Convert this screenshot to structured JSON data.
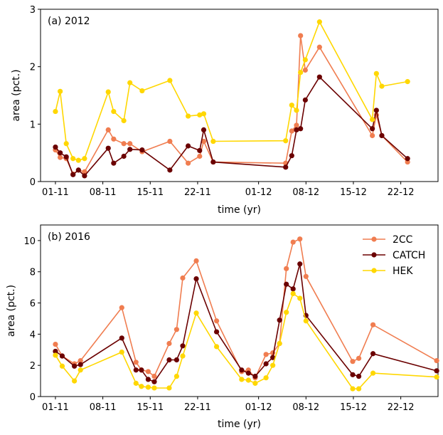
{
  "colors": {
    "2CC": "#f07d50",
    "CATCH": "#6b0000",
    "HEK": "#ffd700"
  },
  "chart_data": [
    {
      "type": "line",
      "title": "(a) 2012",
      "xlabel": "time (yr)",
      "ylabel": "area (pct.)",
      "ylim": [
        0,
        3
      ],
      "yticks": [
        0,
        1,
        2,
        3
      ],
      "xlim": [
        -2.2,
        56.5
      ],
      "xtick_pos": [
        0,
        7,
        14,
        21,
        30,
        37,
        44,
        51
      ],
      "xtick_labels": [
        "01-11",
        "08-11",
        "15-11",
        "22-11",
        "01-12",
        "08-12",
        "15-12",
        "22-12"
      ],
      "legend": false,
      "series": [
        {
          "name": "2CC",
          "points": [
            [
              0,
              0.55
            ],
            [
              0.7,
              0.42
            ],
            [
              1.6,
              0.4
            ],
            [
              2.6,
              0.13
            ],
            [
              3.4,
              0.2
            ],
            [
              4.3,
              0.17
            ],
            [
              7.8,
              0.9
            ],
            [
              8.6,
              0.74
            ],
            [
              10.1,
              0.66
            ],
            [
              11.0,
              0.66
            ],
            [
              12.8,
              0.52
            ],
            [
              16.9,
              0.7
            ],
            [
              19.6,
              0.32
            ],
            [
              21.3,
              0.44
            ],
            [
              21.9,
              0.7
            ],
            [
              23.3,
              0.34
            ],
            [
              34.0,
              0.32
            ],
            [
              34.9,
              0.88
            ],
            [
              35.6,
              0.98
            ],
            [
              36.2,
              2.54
            ],
            [
              36.9,
              1.94
            ],
            [
              39.0,
              2.34
            ],
            [
              46.8,
              0.8
            ],
            [
              47.4,
              1.16
            ],
            [
              48.2,
              0.8
            ],
            [
              52.0,
              0.34
            ]
          ]
        },
        {
          "name": "CATCH",
          "points": [
            [
              0,
              0.6
            ],
            [
              0.7,
              0.5
            ],
            [
              1.6,
              0.43
            ],
            [
              2.6,
              0.12
            ],
            [
              3.4,
              0.2
            ],
            [
              4.3,
              0.1
            ],
            [
              7.8,
              0.58
            ],
            [
              8.6,
              0.32
            ],
            [
              10.1,
              0.44
            ],
            [
              11.0,
              0.56
            ],
            [
              12.8,
              0.55
            ],
            [
              16.9,
              0.2
            ],
            [
              19.6,
              0.62
            ],
            [
              21.3,
              0.54
            ],
            [
              21.9,
              0.9
            ],
            [
              23.3,
              0.34
            ],
            [
              34.0,
              0.25
            ],
            [
              34.9,
              0.45
            ],
            [
              35.6,
              0.9
            ],
            [
              36.2,
              0.92
            ],
            [
              36.9,
              1.42
            ],
            [
              39.0,
              1.82
            ],
            [
              46.8,
              0.92
            ],
            [
              47.4,
              1.24
            ],
            [
              48.2,
              0.8
            ],
            [
              52.0,
              0.4
            ]
          ]
        },
        {
          "name": "HEK",
          "points": [
            [
              0,
              1.22
            ],
            [
              0.7,
              1.57
            ],
            [
              1.6,
              0.66
            ],
            [
              2.6,
              0.4
            ],
            [
              3.4,
              0.37
            ],
            [
              4.3,
              0.4
            ],
            [
              7.8,
              1.56
            ],
            [
              8.6,
              1.22
            ],
            [
              10.1,
              1.06
            ],
            [
              11.0,
              1.72
            ],
            [
              12.8,
              1.58
            ],
            [
              16.9,
              1.76
            ],
            [
              19.6,
              1.14
            ],
            [
              21.3,
              1.16
            ],
            [
              21.9,
              1.18
            ],
            [
              23.3,
              0.7
            ],
            [
              34.0,
              0.71
            ],
            [
              34.9,
              1.33
            ],
            [
              35.6,
              1.24
            ],
            [
              36.2,
              1.9
            ],
            [
              36.9,
              2.12
            ],
            [
              39.0,
              2.78
            ],
            [
              46.8,
              1.08
            ],
            [
              47.4,
              1.88
            ],
            [
              48.2,
              1.66
            ],
            [
              52.0,
              1.74
            ]
          ]
        }
      ]
    },
    {
      "type": "line",
      "title": "(b) 2016",
      "xlabel": "time (yr)",
      "ylabel": "area (pct.)",
      "ylim": [
        0,
        11
      ],
      "yticks": [
        0,
        2,
        4,
        6,
        8,
        10
      ],
      "xlim": [
        -2.2,
        56.5
      ],
      "xtick_pos": [
        0,
        7,
        14,
        21,
        30,
        37,
        44,
        51
      ],
      "xtick_labels": [
        "01-11",
        "08-11",
        "15-11",
        "22-11",
        "01-12",
        "08-12",
        "15-12",
        "22-12"
      ],
      "legend": true,
      "legend_position": "top-right",
      "series": [
        {
          "name": "2CC",
          "points": [
            [
              0,
              3.35
            ],
            [
              1.0,
              2.6
            ],
            [
              2.8,
              2.1
            ],
            [
              3.7,
              2.3
            ],
            [
              9.8,
              5.7
            ],
            [
              11.9,
              2.2
            ],
            [
              12.7,
              1.7
            ],
            [
              13.7,
              1.6
            ],
            [
              14.6,
              1.3
            ],
            [
              16.8,
              3.4
            ],
            [
              17.9,
              4.3
            ],
            [
              18.8,
              7.6
            ],
            [
              20.8,
              8.7
            ],
            [
              23.8,
              4.85
            ],
            [
              27.5,
              1.6
            ],
            [
              28.5,
              1.7
            ],
            [
              29.5,
              1.2
            ],
            [
              31.1,
              2.7
            ],
            [
              32.1,
              2.8
            ],
            [
              33.1,
              3.4
            ],
            [
              34.1,
              8.2
            ],
            [
              35.1,
              9.9
            ],
            [
              36.1,
              10.1
            ],
            [
              37.0,
              7.7
            ],
            [
              43.9,
              2.25
            ],
            [
              44.8,
              2.45
            ],
            [
              46.9,
              4.6
            ],
            [
              56.3,
              2.3
            ]
          ]
        },
        {
          "name": "CATCH",
          "points": [
            [
              0,
              2.9
            ],
            [
              1.0,
              2.6
            ],
            [
              2.8,
              1.95
            ],
            [
              3.7,
              2.05
            ],
            [
              9.8,
              3.75
            ],
            [
              11.9,
              1.7
            ],
            [
              12.7,
              1.7
            ],
            [
              13.7,
              1.1
            ],
            [
              14.6,
              0.95
            ],
            [
              16.8,
              2.35
            ],
            [
              17.9,
              2.35
            ],
            [
              18.8,
              3.25
            ],
            [
              20.8,
              7.55
            ],
            [
              23.8,
              4.15
            ],
            [
              27.5,
              1.7
            ],
            [
              28.5,
              1.5
            ],
            [
              29.5,
              1.3
            ],
            [
              31.1,
              2.1
            ],
            [
              32.1,
              2.5
            ],
            [
              33.1,
              4.9
            ],
            [
              34.1,
              7.2
            ],
            [
              35.1,
              6.9
            ],
            [
              36.1,
              8.5
            ],
            [
              37.0,
              5.2
            ],
            [
              43.9,
              1.4
            ],
            [
              44.8,
              1.3
            ],
            [
              46.9,
              2.75
            ],
            [
              56.3,
              1.65
            ]
          ]
        },
        {
          "name": "HEK",
          "points": [
            [
              0,
              2.65
            ],
            [
              1.0,
              1.95
            ],
            [
              2.8,
              1.0
            ],
            [
              3.7,
              1.7
            ],
            [
              9.8,
              2.85
            ],
            [
              11.9,
              0.85
            ],
            [
              12.7,
              0.65
            ],
            [
              13.7,
              0.6
            ],
            [
              14.6,
              0.55
            ],
            [
              16.8,
              0.55
            ],
            [
              17.9,
              1.3
            ],
            [
              18.8,
              2.6
            ],
            [
              20.8,
              5.35
            ],
            [
              23.8,
              3.2
            ],
            [
              27.5,
              1.1
            ],
            [
              28.5,
              1.05
            ],
            [
              29.5,
              0.85
            ],
            [
              31.1,
              1.2
            ],
            [
              32.1,
              2.0
            ],
            [
              33.1,
              3.4
            ],
            [
              34.1,
              5.4
            ],
            [
              35.1,
              6.6
            ],
            [
              36.1,
              6.3
            ],
            [
              37.0,
              4.85
            ],
            [
              43.9,
              0.5
            ],
            [
              44.8,
              0.5
            ],
            [
              46.9,
              1.5
            ],
            [
              56.3,
              1.25
            ]
          ]
        }
      ]
    }
  ]
}
